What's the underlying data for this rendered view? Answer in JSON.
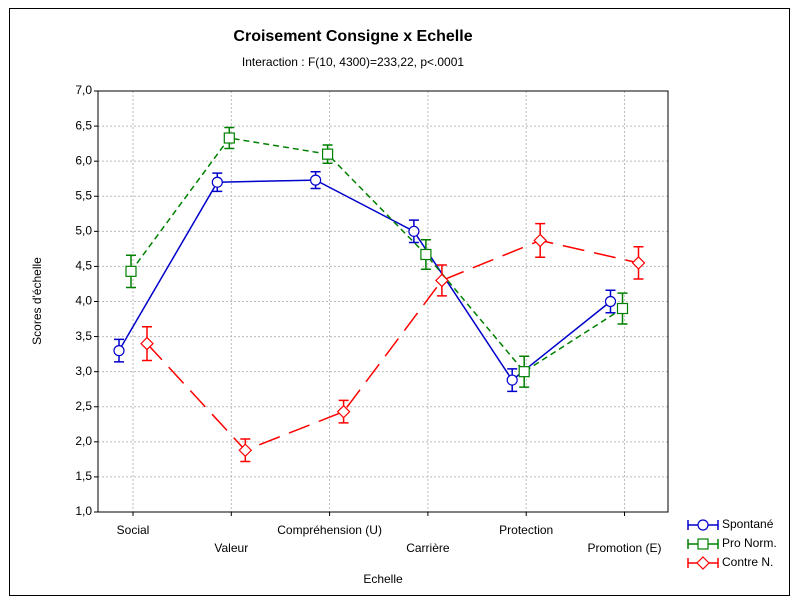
{
  "chart_data": {
    "type": "line",
    "title": "Croisement Consigne x Echelle",
    "subtitle": "Interaction : F(10, 4300)=233,22, p<.0001",
    "x_label": "Echelle",
    "y_label": "Scores d'échelle",
    "categories": [
      "Social",
      "Valeur",
      "Compréhension (U)",
      "Carrière",
      "Protection",
      "Promotion (E)"
    ],
    "series": [
      {
        "name": "Spontané",
        "color": "#0000cc",
        "line_style": "solid",
        "marker": "circle",
        "values": [
          3.3,
          5.7,
          5.73,
          5.0,
          2.88,
          4.0
        ],
        "errors": [
          0.16,
          0.13,
          0.12,
          0.16,
          0.16,
          0.16
        ]
      },
      {
        "name": "Pro Norm.",
        "color": "#008000",
        "line_style": "dashed",
        "marker": "square",
        "values": [
          4.43,
          6.33,
          6.1,
          4.67,
          3.0,
          3.9
        ],
        "errors": [
          0.23,
          0.15,
          0.13,
          0.21,
          0.22,
          0.22
        ]
      },
      {
        "name": "Contre N.",
        "color": "#ff0000",
        "line_style": "long-dash",
        "marker": "diamond",
        "values": [
          3.4,
          1.88,
          2.43,
          4.3,
          4.87,
          4.55
        ],
        "errors": [
          0.24,
          0.16,
          0.16,
          0.22,
          0.24,
          0.23
        ]
      }
    ],
    "ylim": [
      1.0,
      7.0
    ],
    "yticks": [
      {
        "value": 1.0,
        "label": "1,0"
      },
      {
        "value": 1.5,
        "label": "1,5"
      },
      {
        "value": 2.0,
        "label": "2,0"
      },
      {
        "value": 2.5,
        "label": "2,5"
      },
      {
        "value": 3.0,
        "label": "3,0"
      },
      {
        "value": 3.5,
        "label": "3,5"
      },
      {
        "value": 4.0,
        "label": "4,0"
      },
      {
        "value": 4.5,
        "label": "4,5"
      },
      {
        "value": 5.0,
        "label": "5,0"
      },
      {
        "value": 5.5,
        "label": "5,5"
      },
      {
        "value": 6.0,
        "label": "6,0"
      },
      {
        "value": 6.5,
        "label": "6,5"
      },
      {
        "value": 7.0,
        "label": "7,0"
      }
    ],
    "grid": true,
    "legend": "bottom-right"
  }
}
